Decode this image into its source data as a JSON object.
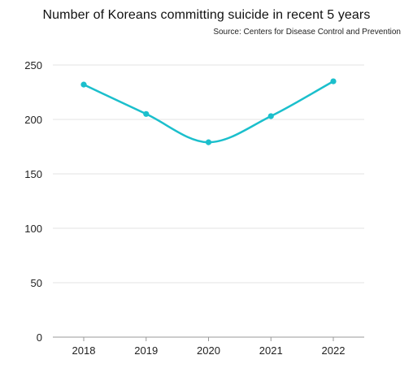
{
  "chart_data": {
    "type": "line",
    "title": "Number of Koreans committing suicide in recent 5 years",
    "subtitle": "Source: Centers for Disease Control and Prevention",
    "xlabel": "",
    "ylabel": "",
    "categories": [
      "2018",
      "2019",
      "2020",
      "2021",
      "2022"
    ],
    "series": [
      {
        "values": [
          232,
          205,
          179,
          203,
          235
        ]
      }
    ],
    "ylim": [
      0,
      250
    ],
    "yticks": [
      0,
      50,
      100,
      150,
      200,
      250
    ],
    "grid": true,
    "legend": "none",
    "line_color": "#1bbfcc",
    "grid_color": "#e3e3e3",
    "axis_color": "#999999"
  }
}
